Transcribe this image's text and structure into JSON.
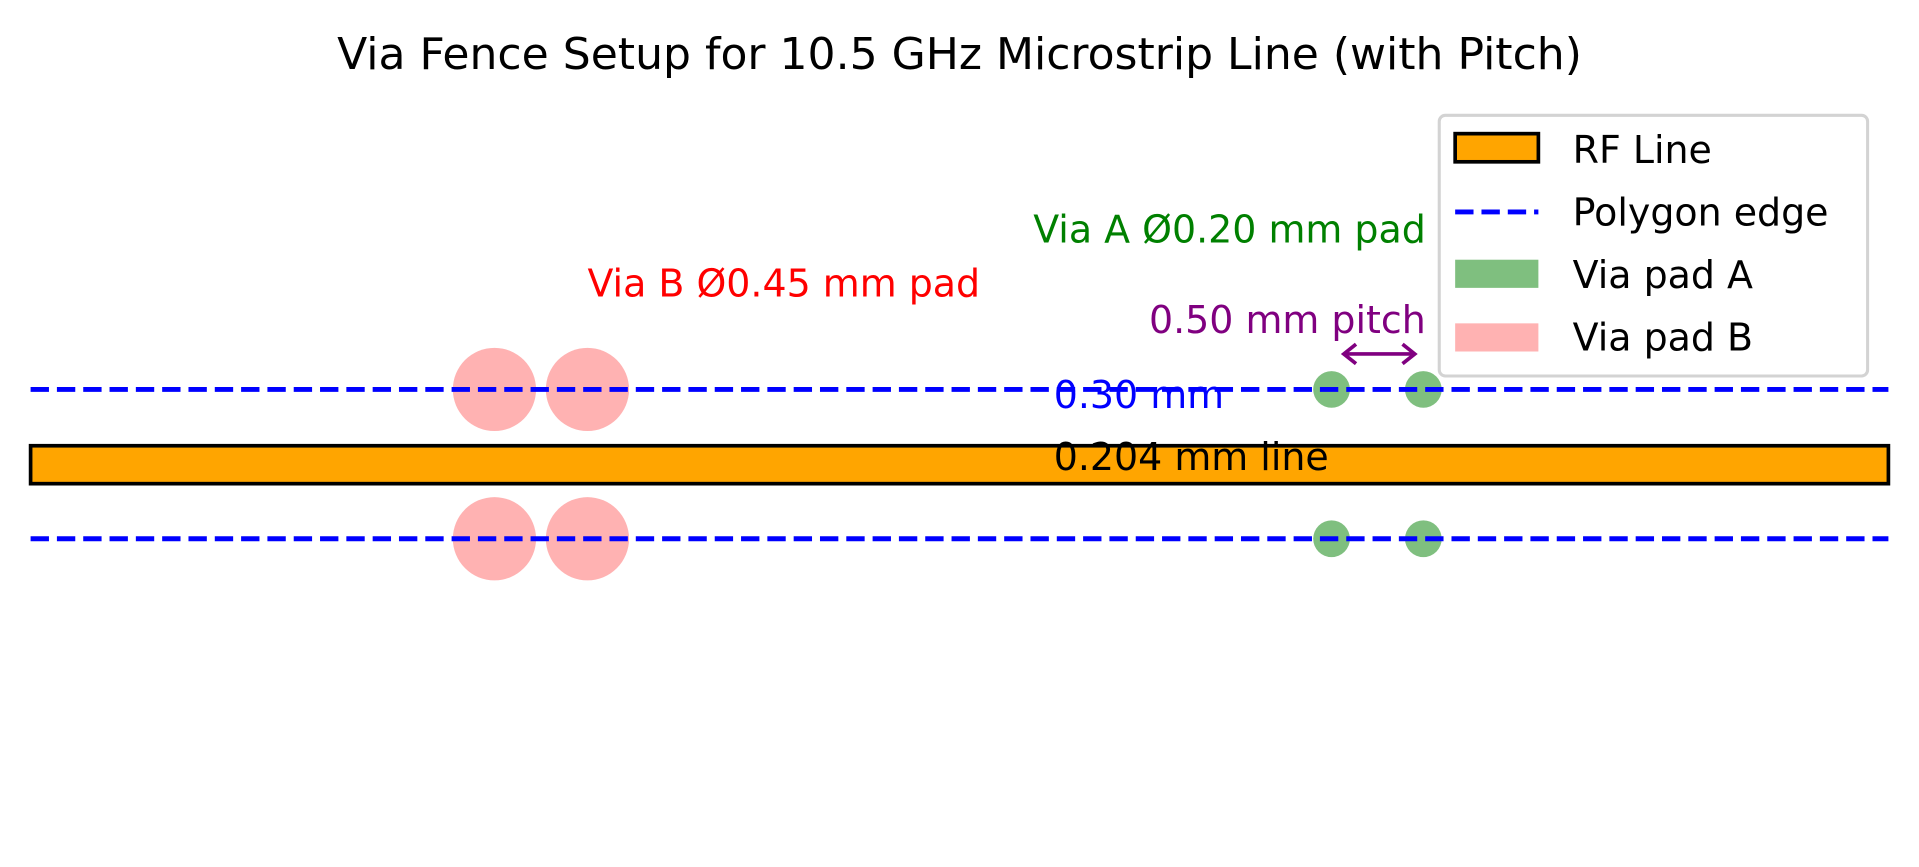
{
  "title": "Via Fence Setup for 10.5 GHz Microstrip Line (with Pitch)",
  "colors": {
    "rf_line_fill": "#ffa500",
    "rf_line_edge": "#000000",
    "polygon_edge": "#0000ff",
    "via_a": "#7fbf7f",
    "via_b": "#ffb2b2",
    "via_a_label": "#008000",
    "via_b_label": "#ff0000",
    "pitch": "#800080",
    "gap_label": "#0000ff"
  },
  "annotations": {
    "via_b": "Via B Ø0.45 mm pad",
    "via_a": "Via A Ø0.20 mm pad",
    "pitch": "0.50 mm pitch",
    "gap": "0.30 mm",
    "line_width": "0.204 mm line"
  },
  "legend": {
    "items": [
      {
        "label": "RF Line",
        "icon": "orange-rect-icon"
      },
      {
        "label": "Polygon edge",
        "icon": "dashed-line-icon"
      },
      {
        "label": "Via pad A",
        "icon": "green-patch-icon"
      },
      {
        "label": "Via pad B",
        "icon": "pink-patch-icon"
      }
    ]
  }
}
